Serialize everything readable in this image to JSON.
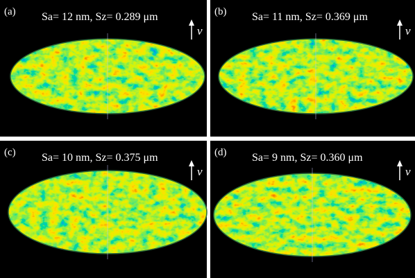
{
  "panels": [
    {
      "label": "(a)",
      "caption": "Sa= 12 nm, Sz= 0.289 μm",
      "axis_label": "v"
    },
    {
      "label": "(b)",
      "caption": "Sa= 11 nm, Sz= 0.369 μm",
      "axis_label": "v"
    },
    {
      "label": "(c)",
      "caption": "Sa= 10 nm, Sz= 0.375 μm",
      "axis_label": "v"
    },
    {
      "label": "(d)",
      "caption": "Sa= 9 nm, Sz= 0.360 μm",
      "axis_label": "v"
    }
  ]
}
